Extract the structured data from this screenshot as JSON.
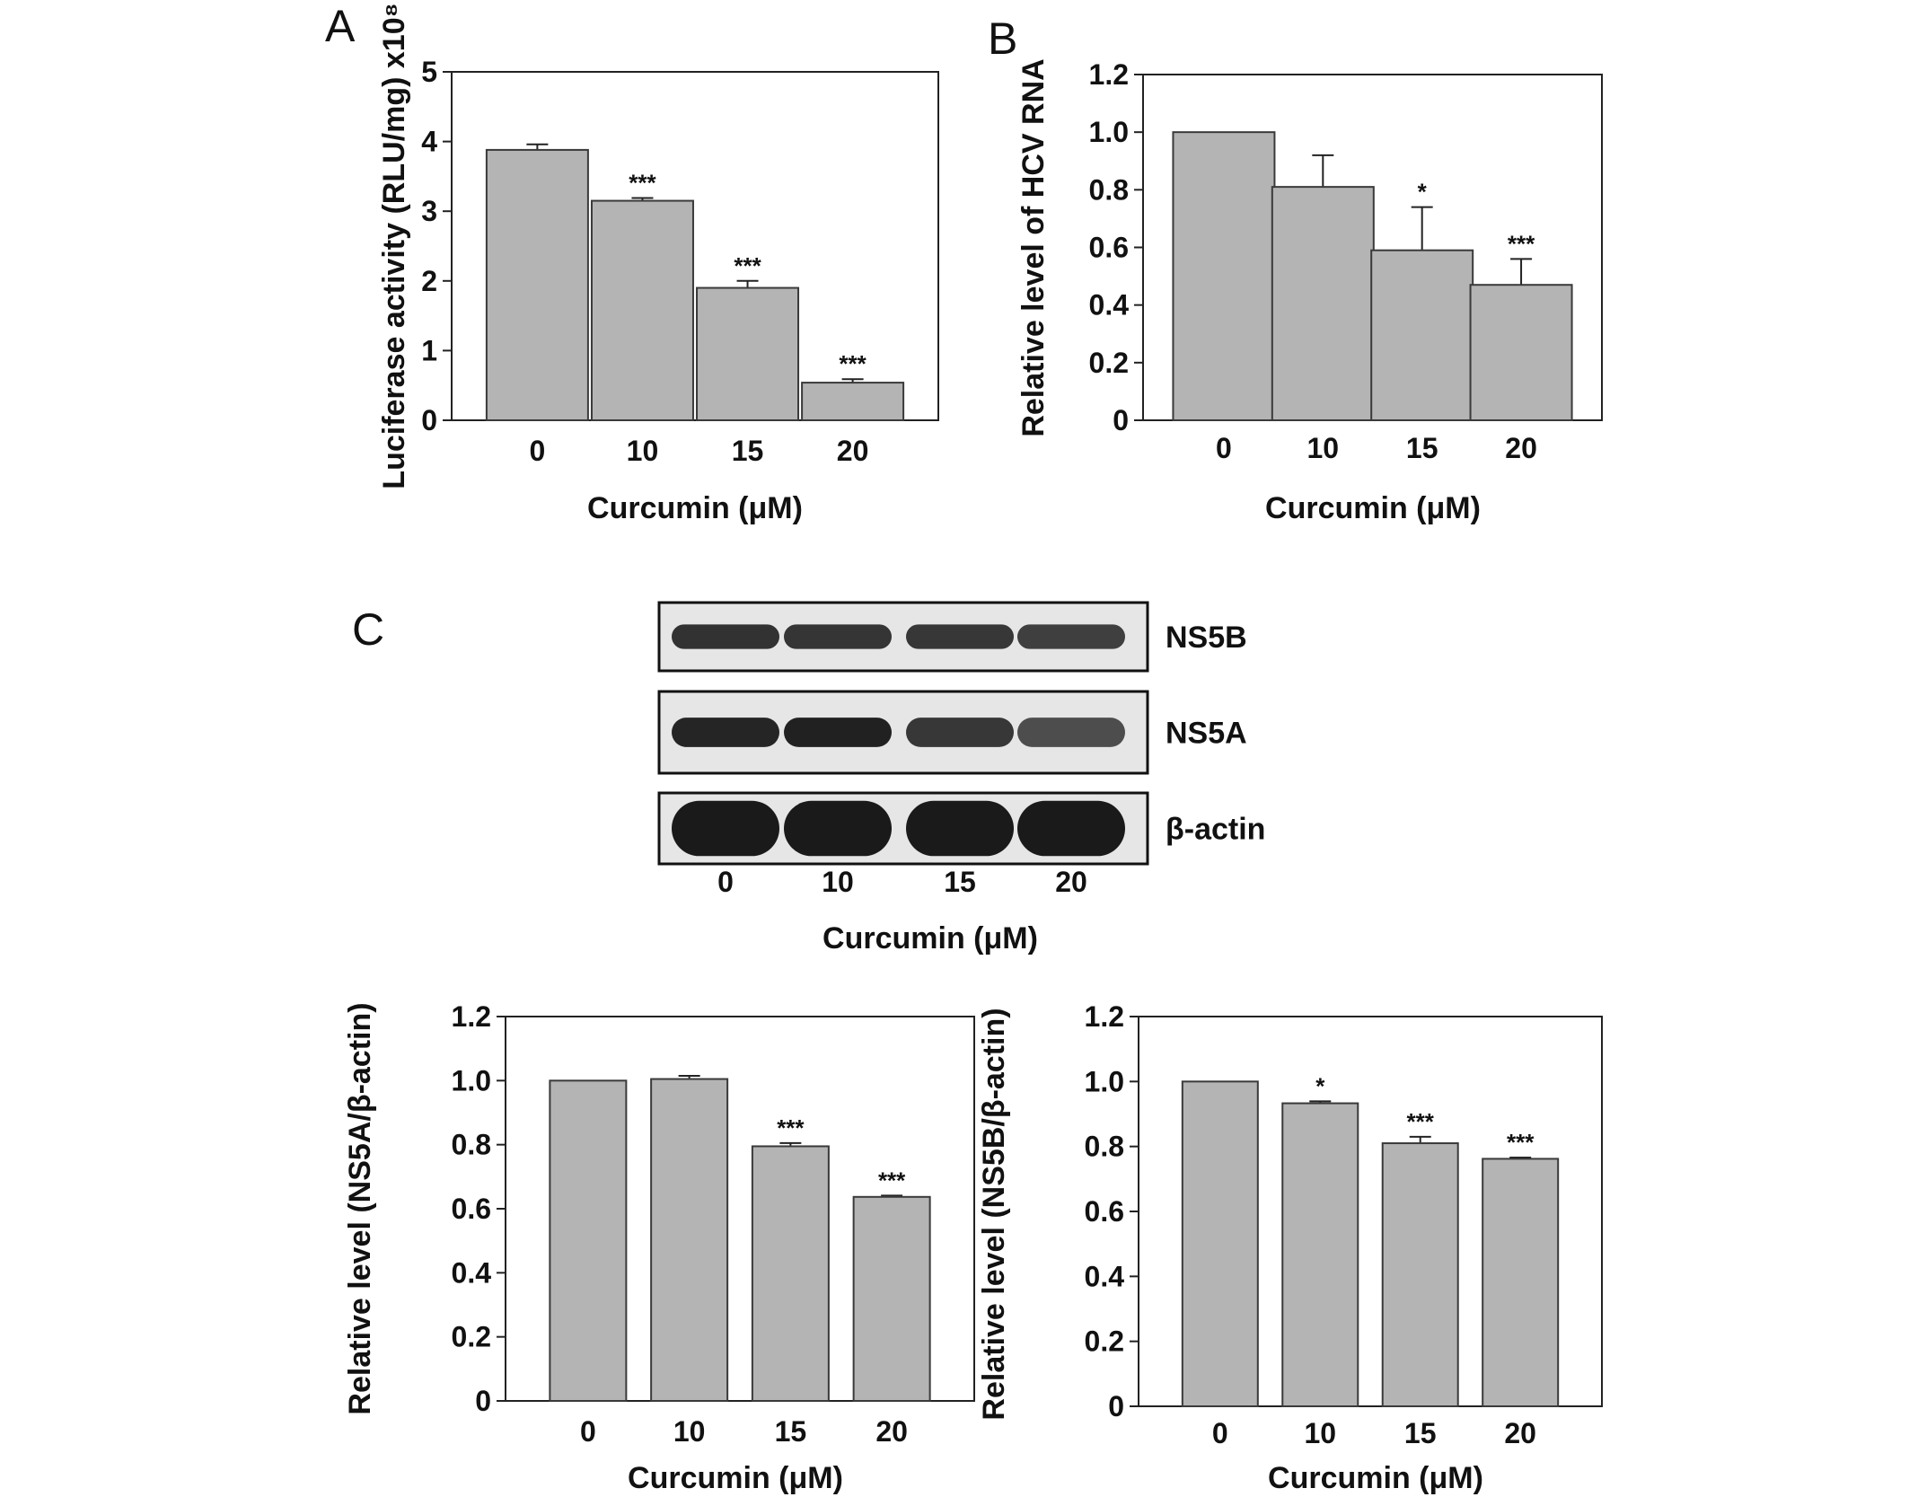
{
  "panel_letters": [
    "A",
    "B",
    "C"
  ],
  "chart_data": [
    {
      "panel": "A",
      "type": "bar",
      "categories": [
        "0",
        "10",
        "15",
        "20"
      ],
      "values": [
        3.88,
        3.15,
        1.9,
        0.54
      ],
      "errors": [
        0.08,
        0.04,
        0.1,
        0.05
      ],
      "significance": [
        "",
        "***",
        "***",
        "***"
      ],
      "xlabel": "Curcumin (μM)",
      "ylabel": "Luciferase activity (RLU/mg) x10⁸",
      "ylim": [
        0,
        5
      ],
      "yticks": [
        "0",
        "1",
        "2",
        "3",
        "4",
        "5"
      ]
    },
    {
      "panel": "B",
      "type": "bar",
      "categories": [
        "0",
        "10",
        "15",
        "20"
      ],
      "values": [
        1.0,
        0.81,
        0.59,
        0.47
      ],
      "errors": [
        0.0,
        0.11,
        0.15,
        0.09
      ],
      "significance": [
        "",
        "",
        "*",
        "***"
      ],
      "xlabel": "Curcumin (μM)",
      "ylabel": "Relative level of HCV RNA",
      "ylim": [
        0,
        1.2
      ],
      "yticks": [
        "0",
        "0.2",
        "0.4",
        "0.6",
        "0.8",
        "1.0",
        "1.2"
      ]
    },
    {
      "panel": "C-left",
      "type": "bar",
      "categories": [
        "0",
        "10",
        "15",
        "20"
      ],
      "values": [
        1.0,
        1.005,
        0.795,
        0.637
      ],
      "errors": [
        0.0,
        0.01,
        0.01,
        0.004
      ],
      "significance": [
        "",
        "",
        "***",
        "***"
      ],
      "xlabel": "Curcumin (μM)",
      "ylabel": "Relative level  (NS5A/β-actin)",
      "ylim": [
        0,
        1.2
      ],
      "yticks": [
        "0",
        "0.2",
        "0.4",
        "0.6",
        "0.8",
        "1.0",
        "1.2"
      ]
    },
    {
      "panel": "C-right",
      "type": "bar",
      "categories": [
        "0",
        "10",
        "15",
        "20"
      ],
      "values": [
        1.0,
        0.933,
        0.81,
        0.762
      ],
      "errors": [
        0.0,
        0.006,
        0.02,
        0.004
      ],
      "significance": [
        "",
        "*",
        "***",
        "***"
      ],
      "xlabel": "Curcumin (μM)",
      "ylabel": "Relative level (NS5B/β-actin)",
      "ylim": [
        0,
        1.2
      ],
      "yticks": [
        "0",
        "0.2",
        "0.4",
        "0.6",
        "0.8",
        "1.0",
        "1.2"
      ]
    }
  ],
  "blot": {
    "lane_labels": [
      "0",
      "10",
      "15",
      "20"
    ],
    "xlabel": "Curcumin (μM)",
    "rows": [
      {
        "label": "NS5B",
        "intensities": [
          0.82,
          0.8,
          0.78,
          0.72
        ]
      },
      {
        "label": "NS5A",
        "intensities": [
          0.92,
          0.95,
          0.78,
          0.62
        ]
      },
      {
        "label": "β-actin",
        "intensities": [
          1.0,
          1.0,
          1.0,
          1.0
        ]
      }
    ]
  },
  "colors": {
    "bar_fill": "#b4b4b4",
    "bar_stroke": "#3a3a3a",
    "axis": "#222222",
    "blot_background": "#e6e6e6",
    "band": "#1a1a1a"
  }
}
